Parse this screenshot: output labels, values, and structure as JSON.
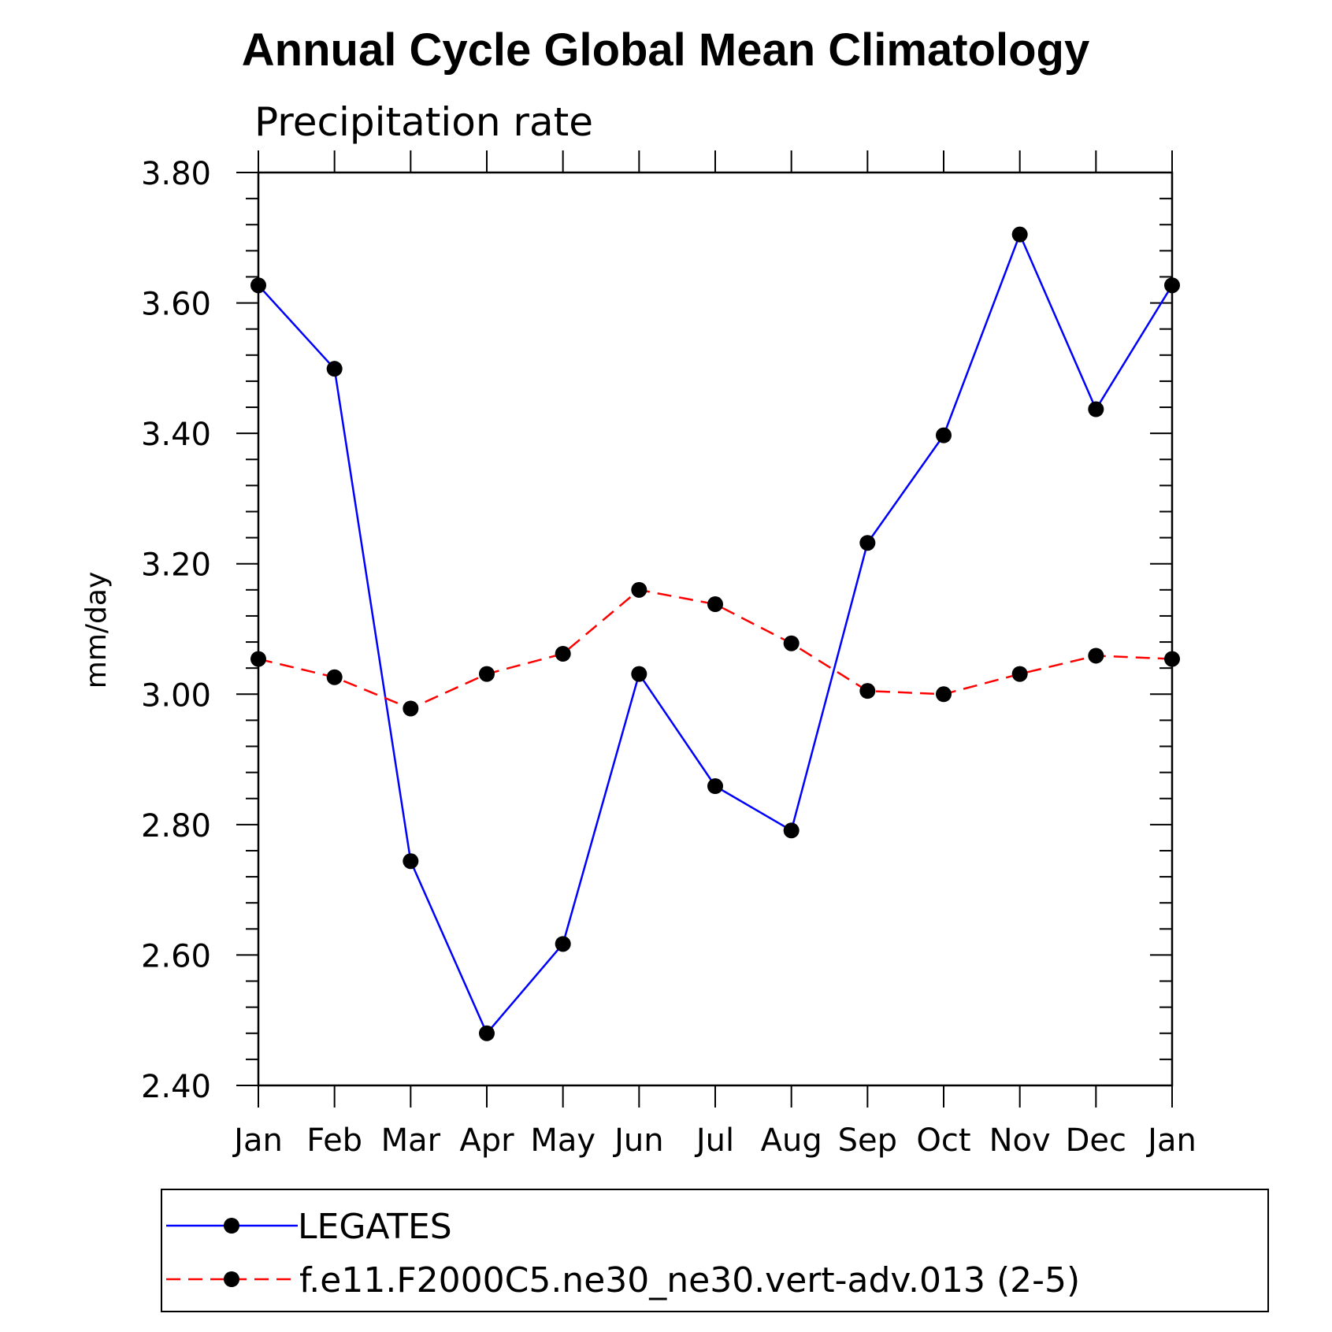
{
  "chart_data": {
    "type": "line",
    "title": "Annual Cycle Global Mean Climatology",
    "subtitle": "Precipitation rate",
    "ylabel": "mm/day",
    "xlabel": "",
    "categories": [
      "Jan",
      "Feb",
      "Mar",
      "Apr",
      "May",
      "Jun",
      "Jul",
      "Aug",
      "Sep",
      "Oct",
      "Nov",
      "Dec",
      "Jan"
    ],
    "ylim": [
      2.4,
      3.8
    ],
    "yticks": [
      "2.40",
      "2.60",
      "2.80",
      "3.00",
      "3.20",
      "3.40",
      "3.60",
      "3.80"
    ],
    "ytick_values": [
      2.4,
      2.6,
      2.8,
      3.0,
      3.2,
      3.4,
      3.6,
      3.8
    ],
    "grid": false,
    "legend_position": "bottom",
    "series": [
      {
        "name": "LEGATES",
        "color": "#0000ff",
        "style": "solid",
        "marker": "circle",
        "values": [
          3.627,
          3.499,
          2.744,
          2.48,
          2.617,
          3.031,
          2.859,
          2.791,
          3.232,
          3.397,
          3.705,
          3.437,
          3.627
        ]
      },
      {
        "name": "f.e11.F2000C5.ne30_ne30.vert-adv.013 (2-5)",
        "color": "#ff0000",
        "style": "dashed",
        "marker": "circle",
        "values": [
          3.054,
          3.026,
          2.978,
          3.031,
          3.062,
          3.16,
          3.138,
          3.078,
          3.005,
          3.0,
          3.031,
          3.059,
          3.054
        ]
      }
    ]
  }
}
